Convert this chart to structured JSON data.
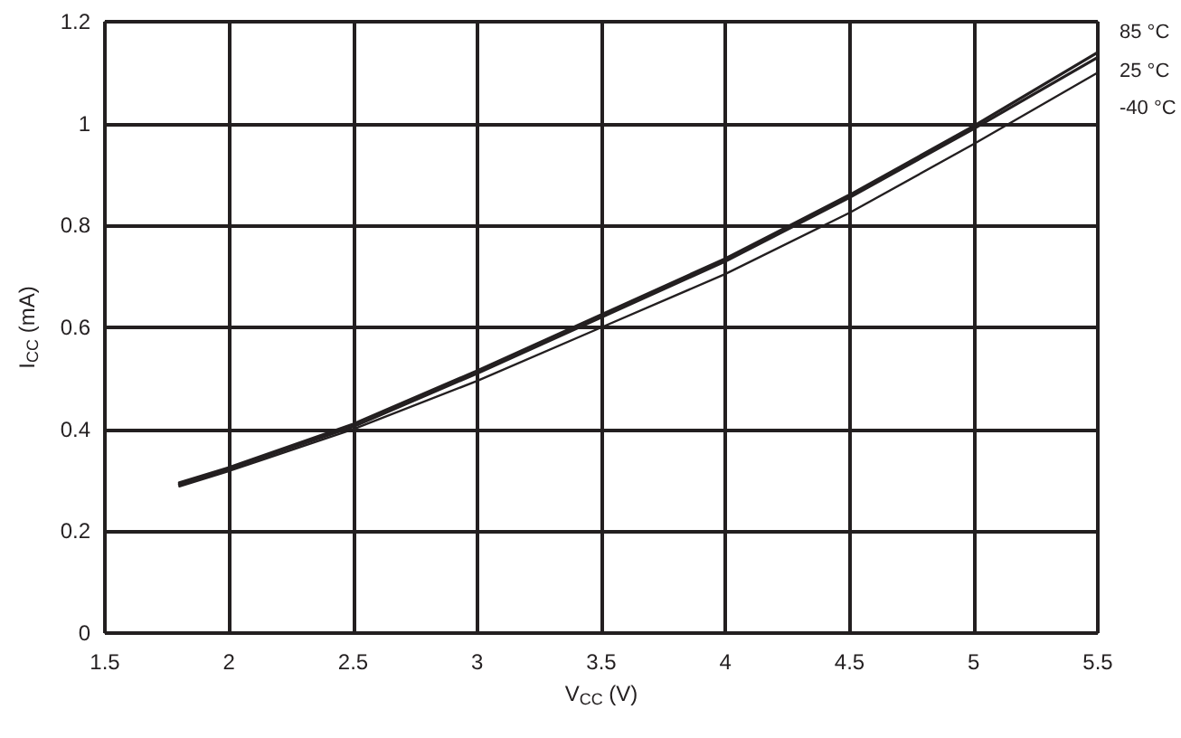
{
  "chart_data": {
    "type": "line",
    "xlabel": "V$_{CC}$ (V)",
    "ylabel": "I$_{CC}$ (mA)",
    "x": [
      1.8,
      2,
      2.5,
      3,
      3.5,
      4,
      4.5,
      5,
      5.5
    ],
    "series": [
      {
        "name": "85 °C",
        "color": "#231f20",
        "values": [
          0.295,
          0.325,
          0.41,
          0.515,
          0.625,
          0.735,
          0.86,
          0.995,
          1.14
        ]
      },
      {
        "name": "25 °C",
        "color": "#231f20",
        "values": [
          0.292,
          0.322,
          0.405,
          0.51,
          0.62,
          0.73,
          0.855,
          0.99,
          1.13
        ]
      },
      {
        "name": "-40 °C",
        "color": "#231f20",
        "values": [
          0.288,
          0.318,
          0.4,
          0.495,
          0.6,
          0.705,
          0.825,
          0.96,
          1.1
        ]
      }
    ],
    "xlim": [
      1.5,
      5.5
    ],
    "xticks": [
      1.5,
      2,
      2.5,
      3,
      3.5,
      4,
      4.5,
      5,
      5.5
    ],
    "ylim": [
      0,
      1.2
    ],
    "yticks": [
      0,
      0.2,
      0.4,
      0.6,
      0.8,
      1,
      1.2
    ],
    "grid": true,
    "legend": false,
    "marker": "none",
    "line_style": "solid"
  }
}
